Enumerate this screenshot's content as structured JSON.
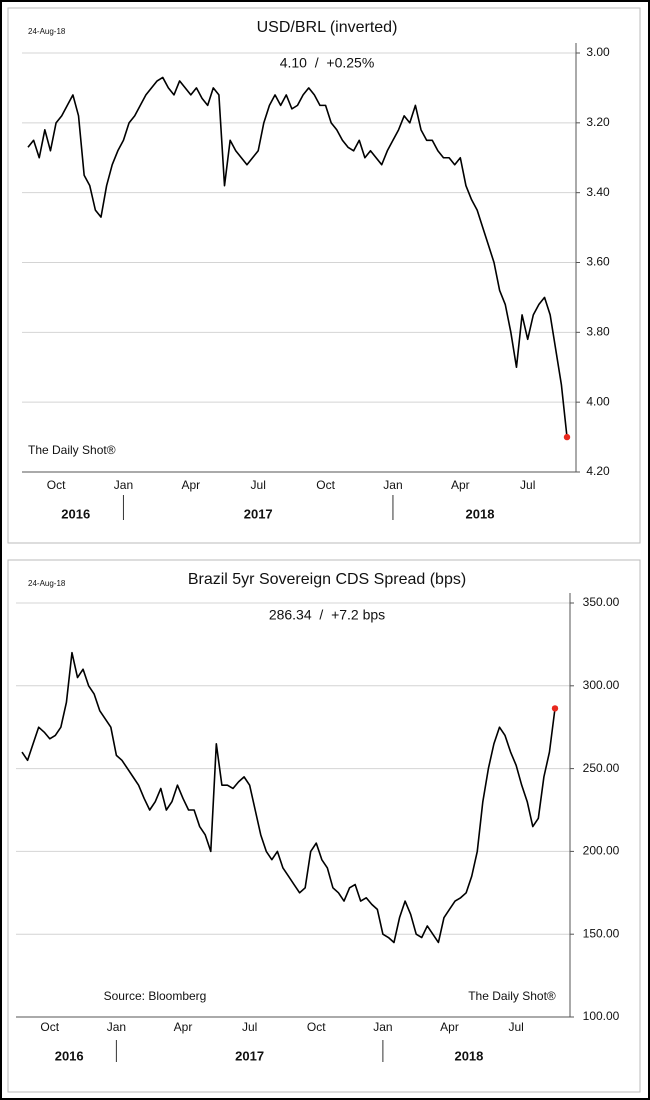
{
  "chart_data": [
    {
      "type": "line",
      "title": "USD/BRL (inverted)",
      "subtitle": "4.10  /  +0.25%",
      "date_label": "24-Aug-18",
      "watermark": "The Daily Shot®",
      "y_inverted": true,
      "grid": true,
      "highlight_color": "#e8281e",
      "ylim": [
        3.0,
        4.2
      ],
      "yticks": [
        {
          "value": 3.0,
          "label": "3.00"
        },
        {
          "value": 3.2,
          "label": "3.20"
        },
        {
          "value": 3.4,
          "label": "3.40"
        },
        {
          "value": 3.6,
          "label": "3.60"
        },
        {
          "value": 3.8,
          "label": "3.80"
        },
        {
          "value": 4.0,
          "label": "4.00"
        },
        {
          "value": 4.2,
          "label": "4.20"
        }
      ],
      "years": [
        "2016",
        "2017",
        "2018"
      ],
      "categories": [
        null,
        null,
        null,
        null,
        null,
        "Oct",
        null,
        null,
        null,
        null,
        null,
        null,
        null,
        null,
        null,
        null,
        null,
        "Jan",
        null,
        null,
        null,
        null,
        null,
        null,
        null,
        null,
        null,
        null,
        null,
        "Apr",
        null,
        null,
        null,
        null,
        null,
        null,
        null,
        null,
        null,
        null,
        null,
        "Jul",
        null,
        null,
        null,
        null,
        null,
        null,
        null,
        null,
        null,
        null,
        null,
        "Oct",
        null,
        null,
        null,
        null,
        null,
        null,
        null,
        null,
        null,
        null,
        null,
        "Jan",
        null,
        null,
        null,
        null,
        null,
        null,
        null,
        null,
        null,
        null,
        null,
        "Apr",
        null,
        null,
        null,
        null,
        null,
        null,
        null,
        null,
        null,
        null,
        null,
        "Jul",
        null,
        null,
        null,
        null,
        null,
        null,
        null
      ],
      "series": [
        {
          "color": "#000000",
          "values": [
            3.27,
            3.25,
            3.3,
            3.22,
            3.28,
            3.2,
            3.18,
            3.15,
            3.12,
            3.18,
            3.35,
            3.38,
            3.45,
            3.47,
            3.38,
            3.32,
            3.28,
            3.25,
            3.2,
            3.18,
            3.15,
            3.12,
            3.1,
            3.08,
            3.07,
            3.1,
            3.12,
            3.08,
            3.1,
            3.12,
            3.1,
            3.13,
            3.15,
            3.1,
            3.12,
            3.38,
            3.25,
            3.28,
            3.3,
            3.32,
            3.3,
            3.28,
            3.2,
            3.15,
            3.12,
            3.15,
            3.12,
            3.16,
            3.15,
            3.12,
            3.1,
            3.12,
            3.15,
            3.15,
            3.2,
            3.22,
            3.25,
            3.27,
            3.28,
            3.25,
            3.3,
            3.28,
            3.3,
            3.32,
            3.28,
            3.25,
            3.22,
            3.18,
            3.2,
            3.15,
            3.22,
            3.25,
            3.25,
            3.28,
            3.3,
            3.3,
            3.32,
            3.3,
            3.38,
            3.42,
            3.45,
            3.5,
            3.55,
            3.6,
            3.68,
            3.72,
            3.8,
            3.9,
            3.75,
            3.82,
            3.75,
            3.72,
            3.7,
            3.75,
            3.85,
            3.95,
            4.1
          ]
        }
      ]
    },
    {
      "type": "line",
      "title": "Brazil 5yr Sovereign CDS Spread (bps)",
      "subtitle": "286.34  /  +7.2 bps",
      "date_label": "24-Aug-18",
      "watermark": "The Daily Shot®",
      "source": "Source: Bloomberg",
      "y_inverted": false,
      "grid": true,
      "highlight_color": "#e8281e",
      "ylim": [
        100,
        350
      ],
      "yticks": [
        {
          "value": 100,
          "label": "100.00"
        },
        {
          "value": 150,
          "label": "150.00"
        },
        {
          "value": 200,
          "label": "200.00"
        },
        {
          "value": 250,
          "label": "250.00"
        },
        {
          "value": 300,
          "label": "300.00"
        },
        {
          "value": 350,
          "label": "350.00"
        }
      ],
      "years": [
        "2016",
        "2017",
        "2018"
      ],
      "categories": [
        null,
        null,
        null,
        null,
        null,
        "Oct",
        null,
        null,
        null,
        null,
        null,
        null,
        null,
        null,
        null,
        null,
        null,
        "Jan",
        null,
        null,
        null,
        null,
        null,
        null,
        null,
        null,
        null,
        null,
        null,
        "Apr",
        null,
        null,
        null,
        null,
        null,
        null,
        null,
        null,
        null,
        null,
        null,
        "Jul",
        null,
        null,
        null,
        null,
        null,
        null,
        null,
        null,
        null,
        null,
        null,
        "Oct",
        null,
        null,
        null,
        null,
        null,
        null,
        null,
        null,
        null,
        null,
        null,
        "Jan",
        null,
        null,
        null,
        null,
        null,
        null,
        null,
        null,
        null,
        null,
        null,
        "Apr",
        null,
        null,
        null,
        null,
        null,
        null,
        null,
        null,
        null,
        null,
        null,
        "Jul",
        null,
        null,
        null,
        null,
        null,
        null,
        null
      ],
      "series": [
        {
          "color": "#000000",
          "values": [
            260,
            255,
            265,
            275,
            272,
            268,
            270,
            275,
            290,
            320,
            305,
            310,
            300,
            295,
            285,
            280,
            275,
            258,
            255,
            250,
            245,
            240,
            232,
            225,
            230,
            238,
            225,
            230,
            240,
            232,
            225,
            225,
            215,
            210,
            200,
            265,
            240,
            240,
            238,
            242,
            245,
            240,
            225,
            210,
            200,
            195,
            200,
            190,
            185,
            180,
            175,
            178,
            200,
            205,
            195,
            190,
            178,
            175,
            170,
            178,
            180,
            170,
            172,
            168,
            165,
            150,
            148,
            145,
            160,
            170,
            162,
            150,
            148,
            155,
            150,
            145,
            160,
            165,
            170,
            172,
            175,
            185,
            200,
            230,
            250,
            265,
            275,
            270,
            260,
            252,
            240,
            230,
            215,
            220,
            245,
            260,
            286.34
          ]
        }
      ]
    }
  ]
}
